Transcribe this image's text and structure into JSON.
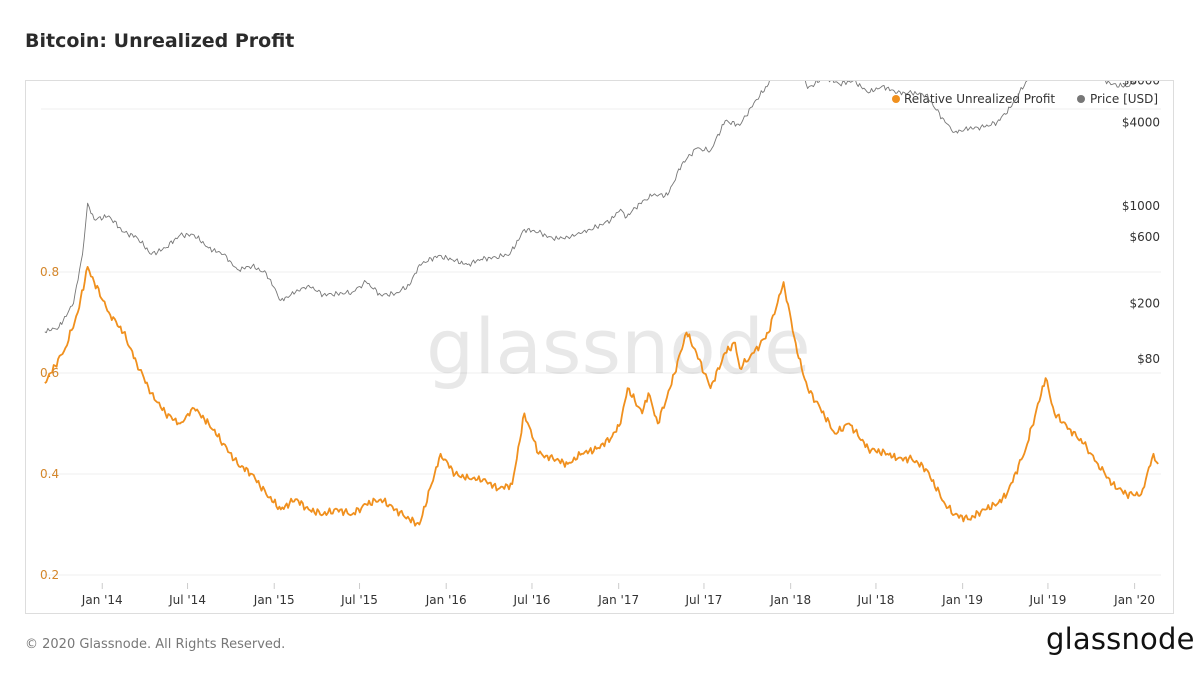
{
  "header": {
    "title": "Bitcoin: Unrealized Profit"
  },
  "footer": {
    "copyright": "© 2020 Glassnode. All Rights Reserved.",
    "logo": "glassnode"
  },
  "chart_data": {
    "type": "line",
    "watermark": "glassnode",
    "legend": {
      "placement": "top-right",
      "entries": [
        "Relative Unrealized Profit",
        "Price [USD]"
      ]
    },
    "x_ticks": [
      "Jan '14",
      "Jul '14",
      "Jan '15",
      "Jul '15",
      "Jan '16",
      "Jul '16",
      "Jan '17",
      "Jul '17",
      "Jan '18",
      "Jul '18",
      "Jan '19",
      "Jul '19",
      "Jan '20"
    ],
    "y_left_ticks": [
      "0.2",
      "0.4",
      "0.6",
      "0.8"
    ],
    "y_right_ticks": [
      "$80",
      "$200",
      "$600",
      "$1000",
      "$4000",
      "$8000",
      "$20000"
    ],
    "ylim_left": [
      0.2,
      0.8
    ],
    "ylim_right": [
      80,
      20000
    ],
    "right_axis_scale": "log",
    "grid": true,
    "series": [
      {
        "name": "Relative Unrealized Profit",
        "color": "#f0901e",
        "x": [
          "2013-09-01",
          "2013-10-15",
          "2013-11-10",
          "2013-12-01",
          "2013-12-15",
          "2014-01-15",
          "2014-02-15",
          "2014-03-15",
          "2014-04-15",
          "2014-05-15",
          "2014-06-15",
          "2014-07-15",
          "2014-08-15",
          "2014-09-15",
          "2014-10-15",
          "2014-11-15",
          "2014-12-15",
          "2015-01-15",
          "2015-02-15",
          "2015-03-15",
          "2015-04-15",
          "2015-05-15",
          "2015-06-15",
          "2015-07-15",
          "2015-08-15",
          "2015-09-15",
          "2015-10-15",
          "2015-11-05",
          "2015-12-01",
          "2015-12-20",
          "2016-01-20",
          "2016-02-20",
          "2016-03-20",
          "2016-04-20",
          "2016-05-20",
          "2016-06-15",
          "2016-07-15",
          "2016-08-15",
          "2016-09-15",
          "2016-10-15",
          "2016-11-15",
          "2016-12-15",
          "2017-01-05",
          "2017-01-20",
          "2017-02-20",
          "2017-03-05",
          "2017-03-25",
          "2017-04-20",
          "2017-05-25",
          "2017-06-15",
          "2017-07-15",
          "2017-08-15",
          "2017-09-05",
          "2017-09-15",
          "2017-10-15",
          "2017-11-15",
          "2017-12-17",
          "2018-01-15",
          "2018-02-06",
          "2018-03-05",
          "2018-04-05",
          "2018-05-05",
          "2018-06-15",
          "2018-07-25",
          "2018-08-15",
          "2018-09-15",
          "2018-10-15",
          "2018-11-25",
          "2018-12-15",
          "2019-01-15",
          "2019-02-15",
          "2019-03-15",
          "2019-04-05",
          "2019-05-15",
          "2019-06-26",
          "2019-07-15",
          "2019-08-15",
          "2019-09-15",
          "2019-10-15",
          "2019-11-15",
          "2019-12-15",
          "2020-01-15",
          "2020-02-10",
          "2020-02-20"
        ],
        "values": [
          0.58,
          0.65,
          0.72,
          0.81,
          0.78,
          0.72,
          0.68,
          0.62,
          0.56,
          0.52,
          0.5,
          0.53,
          0.5,
          0.46,
          0.42,
          0.4,
          0.36,
          0.33,
          0.35,
          0.33,
          0.32,
          0.33,
          0.32,
          0.34,
          0.35,
          0.33,
          0.31,
          0.3,
          0.38,
          0.44,
          0.4,
          0.39,
          0.39,
          0.37,
          0.38,
          0.52,
          0.44,
          0.43,
          0.42,
          0.44,
          0.45,
          0.47,
          0.5,
          0.57,
          0.52,
          0.56,
          0.5,
          0.57,
          0.68,
          0.64,
          0.57,
          0.64,
          0.66,
          0.61,
          0.64,
          0.68,
          0.78,
          0.64,
          0.57,
          0.53,
          0.48,
          0.5,
          0.45,
          0.44,
          0.43,
          0.43,
          0.41,
          0.34,
          0.32,
          0.31,
          0.33,
          0.34,
          0.36,
          0.45,
          0.59,
          0.52,
          0.49,
          0.46,
          0.42,
          0.38,
          0.36,
          0.36,
          0.44,
          0.42
        ]
      },
      {
        "name": "Price [USD]",
        "color": "#777777",
        "x": [
          "2013-09-01",
          "2013-10-01",
          "2013-11-01",
          "2013-11-20",
          "2013-12-01",
          "2013-12-15",
          "2014-01-15",
          "2014-02-15",
          "2014-03-15",
          "2014-04-15",
          "2014-05-15",
          "2014-06-15",
          "2014-07-15",
          "2014-08-15",
          "2014-09-15",
          "2014-10-15",
          "2014-11-15",
          "2014-12-15",
          "2015-01-15",
          "2015-02-15",
          "2015-03-15",
          "2015-04-15",
          "2015-05-15",
          "2015-06-15",
          "2015-07-15",
          "2015-08-15",
          "2015-09-15",
          "2015-10-15",
          "2015-11-05",
          "2015-12-15",
          "2016-01-15",
          "2016-02-15",
          "2016-03-15",
          "2016-04-15",
          "2016-05-15",
          "2016-06-15",
          "2016-07-15",
          "2016-08-15",
          "2016-09-15",
          "2016-10-15",
          "2016-11-15",
          "2016-12-15",
          "2017-01-05",
          "2017-01-15",
          "2017-02-15",
          "2017-03-15",
          "2017-04-15",
          "2017-05-15",
          "2017-06-15",
          "2017-07-15",
          "2017-08-15",
          "2017-09-15",
          "2017-10-15",
          "2017-11-15",
          "2017-12-17",
          "2018-01-15",
          "2018-02-06",
          "2018-03-15",
          "2018-04-15",
          "2018-05-15",
          "2018-06-15",
          "2018-07-15",
          "2018-08-15",
          "2018-09-15",
          "2018-10-15",
          "2018-11-25",
          "2018-12-15",
          "2019-01-15",
          "2019-02-15",
          "2019-03-15",
          "2019-04-15",
          "2019-05-15",
          "2019-06-26",
          "2019-07-15",
          "2019-08-15",
          "2019-09-15",
          "2019-10-15",
          "2019-11-15",
          "2019-12-15",
          "2020-01-15",
          "2020-02-10",
          "2020-02-20"
        ],
        "values": [
          125,
          135,
          200,
          450,
          1050,
          800,
          850,
          650,
          600,
          450,
          500,
          620,
          620,
          500,
          450,
          350,
          370,
          330,
          210,
          240,
          270,
          230,
          235,
          240,
          285,
          230,
          235,
          270,
          380,
          440,
          410,
          380,
          415,
          430,
          450,
          680,
          650,
          580,
          600,
          640,
          710,
          790,
          950,
          820,
          1050,
          1200,
          1200,
          2000,
          2600,
          2500,
          4100,
          3800,
          5500,
          7500,
          19000,
          11500,
          7000,
          8500,
          7500,
          8000,
          6500,
          7300,
          6500,
          6500,
          6300,
          4000,
          3400,
          3600,
          3700,
          4000,
          5200,
          7800,
          12500,
          10500,
          10500,
          9000,
          8500,
          7500,
          7200,
          8500,
          9800,
          9600
        ]
      }
    ]
  }
}
